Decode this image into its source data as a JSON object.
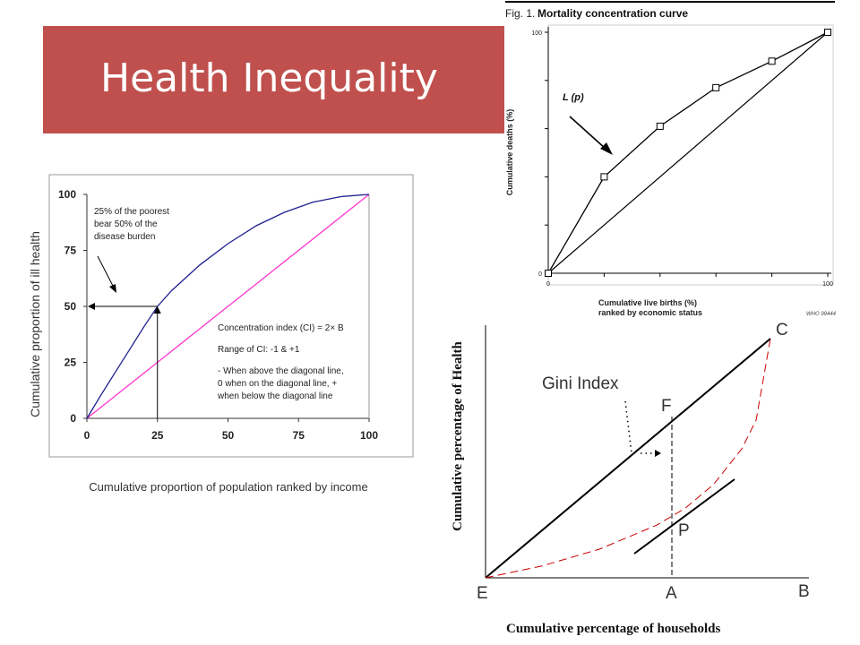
{
  "slide": {
    "title": "Health Inequality"
  },
  "chart_data": [
    {
      "type": "line",
      "title": "",
      "xlabel": "Cumulative proportion of population ranked by income",
      "ylabel": "Cumulative proportion of ill health",
      "xlim": [
        0,
        100
      ],
      "ylim": [
        0,
        100
      ],
      "xticks": [
        "0",
        "25",
        "50",
        "75",
        "100"
      ],
      "yticks": [
        "0",
        "25",
        "50",
        "75",
        "100"
      ],
      "series": [
        {
          "values_x": [
            0,
            5,
            10,
            15,
            20,
            25,
            30,
            40,
            50,
            60,
            70,
            80,
            90,
            100
          ],
          "values_y": [
            0,
            10.5,
            20.5,
            30.5,
            40.5,
            50,
            57,
            68.5,
            78,
            86,
            92,
            96.5,
            99,
            100
          ]
        },
        {
          "values_x": [
            0,
            100
          ],
          "values_y": [
            0,
            100
          ]
        }
      ],
      "guides": {
        "x": 25,
        "y": 50
      },
      "annotations": {
        "arrow_note": [
          "25% of the poorest",
          "bear 50% of the",
          "disease burden"
        ],
        "notes": [
          "Concentration index (CI) = 2× B",
          "Range of CI: -1 & +1",
          "- When above the diagonal line,",
          "0 when on the diagonal line, +",
          "when below the diagonal line"
        ]
      }
    },
    {
      "type": "line",
      "fig_label": "Fig. 1.",
      "title": "Mortality concentration curve",
      "xlabel": [
        "Cumulative live births (%)",
        "ranked by economic status"
      ],
      "ylabel": "Cumulative deaths (%)",
      "xlim": [
        0,
        100
      ],
      "ylim": [
        0,
        100
      ],
      "xticks": [
        "0",
        "100"
      ],
      "yticks": [
        "0",
        "100"
      ],
      "series": [
        {
          "name": "L (p)",
          "x": [
            0,
            20,
            40,
            60,
            80,
            100
          ],
          "y": [
            0,
            40,
            61,
            77,
            88,
            100
          ],
          "markers": "square"
        },
        {
          "x": [
            0,
            100
          ],
          "y": [
            0,
            100
          ]
        }
      ],
      "source": "WHO 99444"
    },
    {
      "type": "line",
      "title": "",
      "xlabel": "Cumulative percentage of households",
      "ylabel": "Cumulative percentage of Health",
      "xlim": [
        0,
        100
      ],
      "ylim": [
        0,
        100
      ],
      "series": [
        {
          "x": [
            0,
            100
          ],
          "y": [
            0,
            100
          ]
        },
        {
          "x": [
            0,
            20,
            40,
            60,
            70,
            80,
            90,
            95,
            100
          ],
          "y": [
            0,
            5,
            12,
            22,
            29,
            39,
            54,
            66,
            100
          ],
          "style": "dashed"
        }
      ],
      "point_labels": {
        "C": "C",
        "E": "E",
        "F": "F",
        "P": "P",
        "A": "A",
        "B": "B"
      },
      "annotation": "Gini Index"
    }
  ]
}
